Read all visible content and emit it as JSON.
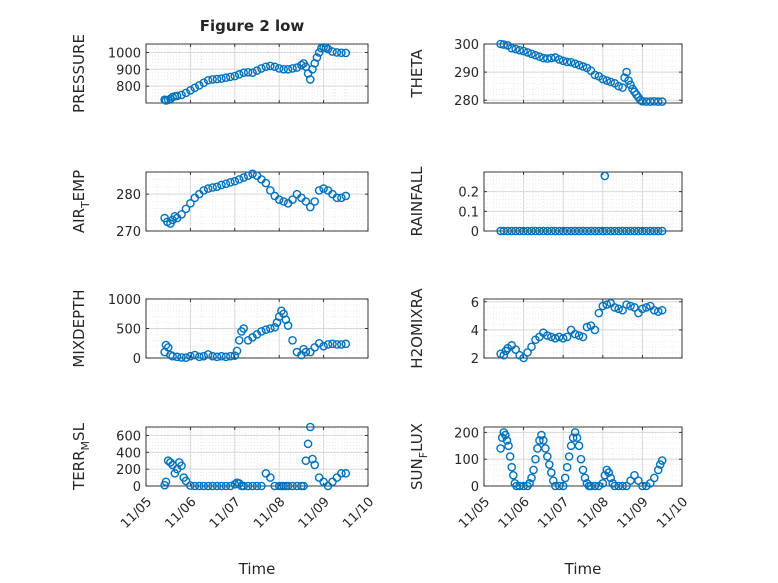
{
  "figure": {
    "title": "Figure 2 low"
  },
  "colors": {
    "marker": "#0072bd",
    "axis": "#262626",
    "grid": "#dcdcdc",
    "background": "#ffffff"
  },
  "chart_data": [
    {
      "id": "pressure",
      "type": "scatter",
      "ylabel": "PRESSURE",
      "ylabel_parts": [
        "PRESSURE"
      ],
      "xlabel": "",
      "ylim": [
        700,
        1050
      ],
      "yticks": [
        "800",
        "900",
        "1000"
      ],
      "ytick_values": [
        800,
        900,
        1000
      ],
      "xlim": [
        0,
        5
      ],
      "xticks": [],
      "grid": true,
      "title": "Figure 2 low",
      "x": [
        0.42,
        0.45,
        0.5,
        0.55,
        0.6,
        0.65,
        0.7,
        0.8,
        0.9,
        1.0,
        1.1,
        1.2,
        1.3,
        1.4,
        1.5,
        1.6,
        1.7,
        1.8,
        1.9,
        2.0,
        2.1,
        2.2,
        2.3,
        2.4,
        2.5,
        2.6,
        2.7,
        2.8,
        2.9,
        3.0,
        3.1,
        3.2,
        3.3,
        3.4,
        3.5,
        3.55,
        3.6,
        3.65,
        3.7,
        3.75,
        3.8,
        3.85,
        3.9,
        3.95,
        4.0,
        4.05,
        4.1,
        4.2,
        4.3,
        4.4,
        4.5
      ],
      "y": [
        720,
        715,
        718,
        725,
        735,
        740,
        742,
        748,
        760,
        775,
        790,
        805,
        820,
        835,
        840,
        842,
        845,
        850,
        855,
        860,
        870,
        880,
        882,
        880,
        892,
        905,
        915,
        920,
        915,
        905,
        900,
        900,
        905,
        910,
        925,
        935,
        915,
        875,
        840,
        900,
        935,
        970,
        1000,
        1025,
        1030,
        1028,
        1020,
        1005,
        1000,
        998,
        997
      ]
    },
    {
      "id": "theta",
      "type": "scatter",
      "ylabel": "THETA",
      "ylabel_parts": [
        "THETA"
      ],
      "xlabel": "",
      "ylim": [
        279,
        300
      ],
      "yticks": [
        "280",
        "290",
        "300"
      ],
      "ytick_values": [
        280,
        290,
        300
      ],
      "xlim": [
        0,
        5
      ],
      "xticks": [],
      "grid": true,
      "x": [
        0.42,
        0.5,
        0.6,
        0.7,
        0.8,
        0.9,
        1.0,
        1.1,
        1.2,
        1.3,
        1.4,
        1.5,
        1.6,
        1.7,
        1.8,
        1.9,
        2.0,
        2.1,
        2.2,
        2.3,
        2.4,
        2.5,
        2.6,
        2.7,
        2.8,
        2.9,
        3.0,
        3.1,
        3.2,
        3.3,
        3.4,
        3.5,
        3.55,
        3.6,
        3.65,
        3.7,
        3.75,
        3.8,
        3.85,
        3.9,
        3.95,
        4.0,
        4.1,
        4.2,
        4.3,
        4.4,
        4.5
      ],
      "y": [
        300,
        299.8,
        299.5,
        298.5,
        298.2,
        297.8,
        297.5,
        297,
        296.5,
        296,
        295.5,
        295,
        294.8,
        295,
        295.2,
        294.5,
        294,
        293.6,
        293.5,
        293,
        292.5,
        292,
        291.5,
        290.5,
        289,
        288.5,
        287.5,
        287,
        286.5,
        286,
        285,
        284.5,
        288,
        290,
        287,
        285.5,
        284,
        283,
        282,
        281,
        280,
        279.6,
        279.5,
        279.5,
        279.6,
        279.5,
        279.5
      ]
    },
    {
      "id": "air_temp",
      "type": "scatter",
      "ylabel": "AIR_TEMP",
      "ylabel_parts": [
        "AIR",
        "T",
        "EMP"
      ],
      "xlabel": "",
      "ylim": [
        270,
        286
      ],
      "yticks": [
        "270",
        "280"
      ],
      "ytick_values": [
        270,
        280
      ],
      "xlim": [
        0,
        5
      ],
      "xticks": [],
      "grid": true,
      "x": [
        0.42,
        0.48,
        0.55,
        0.6,
        0.65,
        0.7,
        0.8,
        0.9,
        1.0,
        1.1,
        1.2,
        1.3,
        1.4,
        1.5,
        1.6,
        1.7,
        1.8,
        1.9,
        2.0,
        2.1,
        2.2,
        2.3,
        2.4,
        2.5,
        2.6,
        2.7,
        2.8,
        2.9,
        3.0,
        3.1,
        3.2,
        3.3,
        3.4,
        3.5,
        3.6,
        3.7,
        3.8,
        3.9,
        4.0,
        4.1,
        4.2,
        4.3,
        4.4,
        4.5
      ],
      "y": [
        273.5,
        272.5,
        272,
        273,
        274,
        273.5,
        274.5,
        276,
        277.5,
        279,
        280,
        281,
        281.5,
        281.8,
        282,
        282.5,
        282.8,
        283.2,
        283.5,
        284,
        284.5,
        285,
        285.5,
        285,
        284,
        283,
        281,
        279.5,
        278.5,
        278,
        277.5,
        278.5,
        280,
        279,
        278,
        276.5,
        278,
        281,
        281.5,
        281,
        280,
        279,
        279,
        279.5
      ]
    },
    {
      "id": "rainfall",
      "type": "scatter",
      "ylabel": "RAINFALL",
      "ylabel_parts": [
        "RAINFALL"
      ],
      "xlabel": "",
      "ylim": [
        0,
        0.3
      ],
      "yticks": [
        "0",
        "0.1",
        "0.2"
      ],
      "ytick_values": [
        0,
        0.1,
        0.2
      ],
      "xlim": [
        0,
        5
      ],
      "xticks": [],
      "grid": true,
      "x": [
        0.42,
        0.5,
        0.6,
        0.7,
        0.8,
        0.9,
        1.0,
        1.1,
        1.2,
        1.3,
        1.4,
        1.5,
        1.6,
        1.7,
        1.8,
        1.9,
        2.0,
        2.1,
        2.2,
        2.3,
        2.4,
        2.5,
        2.6,
        2.7,
        2.8,
        2.9,
        3.0,
        3.05,
        3.1,
        3.2,
        3.3,
        3.4,
        3.5,
        3.6,
        3.7,
        3.8,
        3.9,
        4.0,
        4.1,
        4.2,
        4.3,
        4.4,
        4.5
      ],
      "y": [
        0,
        0,
        0,
        0,
        0,
        0,
        0,
        0,
        0,
        0,
        0,
        0,
        0,
        0,
        0,
        0,
        0,
        0,
        0,
        0,
        0,
        0,
        0,
        0,
        0,
        0,
        0,
        0.28,
        0,
        0,
        0,
        0,
        0,
        0,
        0,
        0,
        0,
        0,
        0,
        0,
        0,
        0,
        0
      ]
    },
    {
      "id": "mixdepth",
      "type": "scatter",
      "ylabel": "MIXDEPTH",
      "ylabel_parts": [
        "MIXDEPTH"
      ],
      "xlabel": "",
      "ylim": [
        0,
        1000
      ],
      "yticks": [
        "0",
        "500",
        "1000"
      ],
      "ytick_values": [
        0,
        500,
        1000
      ],
      "xlim": [
        0,
        5
      ],
      "xticks": [],
      "grid": true,
      "x": [
        0.42,
        0.45,
        0.5,
        0.55,
        0.6,
        0.7,
        0.8,
        0.9,
        1.0,
        1.1,
        1.2,
        1.3,
        1.4,
        1.5,
        1.6,
        1.7,
        1.8,
        1.9,
        2.0,
        2.05,
        2.1,
        2.15,
        2.2,
        2.3,
        2.4,
        2.5,
        2.6,
        2.7,
        2.8,
        2.9,
        2.95,
        3.0,
        3.05,
        3.1,
        3.15,
        3.2,
        3.3,
        3.4,
        3.5,
        3.55,
        3.6,
        3.7,
        3.8,
        3.9,
        4.0,
        4.1,
        4.2,
        4.3,
        4.4,
        4.5
      ],
      "y": [
        100,
        220,
        180,
        50,
        30,
        20,
        10,
        5,
        30,
        50,
        20,
        30,
        60,
        30,
        20,
        30,
        20,
        30,
        40,
        120,
        300,
        450,
        500,
        300,
        350,
        400,
        450,
        480,
        500,
        520,
        600,
        700,
        800,
        750,
        650,
        550,
        300,
        100,
        50,
        150,
        100,
        100,
        180,
        250,
        200,
        230,
        240,
        230,
        230,
        240
      ]
    },
    {
      "id": "h2omixra",
      "type": "scatter",
      "ylabel": "H2OMIXRA",
      "ylabel_parts": [
        "H2OMIXRA"
      ],
      "xlabel": "",
      "ylim": [
        2,
        6.2
      ],
      "yticks": [
        "2",
        "4",
        "6"
      ],
      "ytick_values": [
        2,
        4,
        6
      ],
      "xlim": [
        0,
        5
      ],
      "xticks": [],
      "grid": true,
      "x": [
        0.42,
        0.5,
        0.55,
        0.6,
        0.7,
        0.8,
        0.9,
        1.0,
        1.1,
        1.2,
        1.3,
        1.4,
        1.5,
        1.6,
        1.7,
        1.8,
        1.9,
        2.0,
        2.1,
        2.2,
        2.3,
        2.4,
        2.5,
        2.6,
        2.7,
        2.8,
        2.9,
        3.0,
        3.1,
        3.2,
        3.3,
        3.4,
        3.5,
        3.6,
        3.7,
        3.8,
        3.9,
        4.0,
        4.1,
        4.2,
        4.3,
        4.4,
        4.5
      ],
      "y": [
        2.3,
        2.2,
        2.5,
        2.7,
        2.9,
        2.6,
        2.2,
        2.0,
        2.4,
        2.8,
        3.3,
        3.5,
        3.8,
        3.6,
        3.5,
        3.4,
        3.5,
        3.4,
        3.5,
        4.0,
        3.7,
        3.6,
        3.5,
        4.2,
        4.3,
        4.0,
        5.2,
        5.7,
        5.8,
        5.9,
        5.6,
        5.5,
        5.4,
        5.8,
        5.7,
        5.6,
        5.2,
        5.5,
        5.6,
        5.7,
        5.4,
        5.3,
        5.4
      ]
    },
    {
      "id": "terr_msl",
      "type": "scatter",
      "ylabel": "TERR_MSL",
      "ylabel_parts": [
        "TERR",
        "M",
        "SL"
      ],
      "xlabel": "Time",
      "ylim": [
        0,
        700
      ],
      "yticks": [
        "0",
        "200",
        "400",
        "600"
      ],
      "ytick_values": [
        0,
        200,
        400,
        600
      ],
      "xlim": [
        0,
        5
      ],
      "xticks": [
        "11/05",
        "11/06",
        "11/07",
        "11/08",
        "11/09",
        "11/10"
      ],
      "xtick_values": [
        0,
        1,
        2,
        3,
        4,
        5
      ],
      "grid": true,
      "x": [
        0.42,
        0.45,
        0.5,
        0.55,
        0.6,
        0.65,
        0.7,
        0.75,
        0.8,
        0.85,
        0.9,
        1.0,
        1.1,
        1.2,
        1.3,
        1.4,
        1.5,
        1.6,
        1.7,
        1.8,
        1.9,
        2.0,
        2.05,
        2.1,
        2.15,
        2.2,
        2.3,
        2.4,
        2.5,
        2.6,
        2.7,
        2.8,
        2.9,
        3.0,
        3.05,
        3.1,
        3.15,
        3.2,
        3.3,
        3.4,
        3.5,
        3.55,
        3.6,
        3.65,
        3.7,
        3.75,
        3.8,
        3.9,
        4.0,
        4.1,
        4.2,
        4.3,
        4.4,
        4.5
      ],
      "y": [
        10,
        50,
        300,
        280,
        250,
        150,
        200,
        280,
        240,
        100,
        60,
        5,
        0,
        0,
        0,
        0,
        0,
        0,
        0,
        0,
        0,
        20,
        40,
        30,
        0,
        0,
        0,
        0,
        0,
        0,
        150,
        100,
        0,
        0,
        0,
        0,
        0,
        0,
        0,
        0,
        0,
        0,
        300,
        500,
        700,
        320,
        250,
        100,
        50,
        0,
        50,
        100,
        150,
        150
      ]
    },
    {
      "id": "sun_flux",
      "type": "scatter",
      "ylabel": "SUN_FLUX",
      "ylabel_parts": [
        "SUN",
        "F",
        "LUX"
      ],
      "xlabel": "Time",
      "ylim": [
        0,
        220
      ],
      "yticks": [
        "0",
        "100",
        "200"
      ],
      "ytick_values": [
        0,
        100,
        200
      ],
      "xlim": [
        0,
        5
      ],
      "xticks": [
        "11/05",
        "11/06",
        "11/07",
        "11/08",
        "11/09",
        "11/10"
      ],
      "xtick_values": [
        0,
        1,
        2,
        3,
        4,
        5
      ],
      "grid": true,
      "x": [
        0.42,
        0.46,
        0.5,
        0.54,
        0.58,
        0.62,
        0.66,
        0.7,
        0.74,
        0.78,
        0.82,
        0.9,
        1.0,
        1.1,
        1.15,
        1.2,
        1.25,
        1.3,
        1.35,
        1.4,
        1.45,
        1.5,
        1.55,
        1.6,
        1.65,
        1.7,
        1.75,
        1.8,
        1.9,
        2.0,
        2.05,
        2.1,
        2.15,
        2.2,
        2.25,
        2.3,
        2.35,
        2.4,
        2.45,
        2.5,
        2.55,
        2.6,
        2.65,
        2.7,
        2.8,
        2.9,
        3.0,
        3.05,
        3.1,
        3.15,
        3.2,
        3.25,
        3.3,
        3.4,
        3.5,
        3.6,
        3.7,
        3.8,
        3.9,
        4.0,
        4.1,
        4.2,
        4.3,
        4.4,
        4.45,
        4.5
      ],
      "y": [
        140,
        180,
        200,
        190,
        170,
        150,
        110,
        70,
        40,
        10,
        0,
        0,
        0,
        0,
        10,
        30,
        60,
        100,
        140,
        170,
        190,
        170,
        140,
        110,
        80,
        50,
        20,
        0,
        0,
        0,
        30,
        70,
        110,
        150,
        180,
        200,
        180,
        150,
        100,
        60,
        30,
        10,
        0,
        0,
        0,
        0,
        10,
        40,
        60,
        50,
        30,
        10,
        0,
        0,
        0,
        0,
        20,
        40,
        20,
        0,
        0,
        10,
        30,
        60,
        80,
        95
      ]
    }
  ]
}
